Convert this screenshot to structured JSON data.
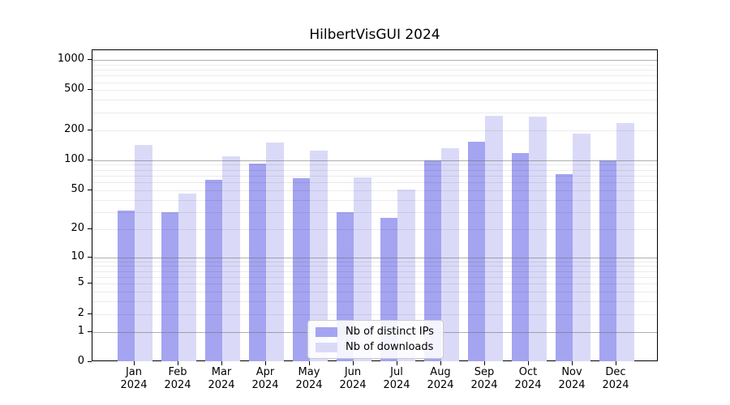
{
  "figure": {
    "title": "HilbertVisGUI 2024"
  },
  "chart_data": {
    "type": "bar",
    "title": "HilbertVisGUI 2024",
    "categories": [
      "Jan",
      "Feb",
      "Mar",
      "Apr",
      "May",
      "Jun",
      "Jul",
      "Aug",
      "Sep",
      "Oct",
      "Nov",
      "Dec"
    ],
    "category_year": "2024",
    "series": [
      {
        "name": "Nb of distinct IPs",
        "color": "#a4a4f1",
        "values": [
          31,
          30,
          64,
          92,
          66,
          30,
          26,
          100,
          153,
          118,
          73,
          100
        ]
      },
      {
        "name": "Nb of downloads",
        "color": "#dadaf8",
        "values": [
          142,
          46,
          110,
          151,
          125,
          67,
          51,
          133,
          280,
          275,
          183,
          233
        ]
      }
    ],
    "yscale": "log1p",
    "yticks": [
      0,
      1,
      2,
      5,
      10,
      20,
      50,
      100,
      200,
      500,
      1000
    ],
    "ylim": [
      0,
      1250
    ],
    "xlabel": "",
    "ylabel": "",
    "grid": "horizontal, log minor gridlines, drawn over bars",
    "legend_position": "lower center"
  }
}
